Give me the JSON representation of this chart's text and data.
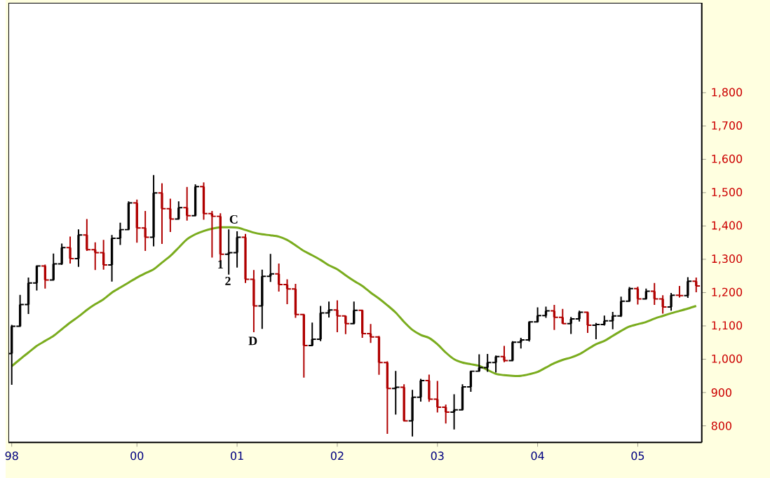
{
  "chart_data": {
    "type": "candlestick",
    "categories": [
      "98",
      null,
      null,
      null,
      null,
      null,
      null,
      null,
      null,
      null,
      null,
      null,
      null,
      null,
      null,
      "00",
      null,
      null,
      null,
      null,
      null,
      null,
      null,
      null,
      null,
      null,
      null,
      "01",
      null,
      null,
      null,
      null,
      null,
      null,
      null,
      null,
      null,
      null,
      null,
      "02",
      null,
      null,
      null,
      null,
      null,
      null,
      null,
      null,
      null,
      null,
      null,
      "03",
      null,
      null,
      null,
      null,
      null,
      null,
      null,
      null,
      null,
      null,
      null,
      "04",
      null,
      null,
      null,
      null,
      null,
      null,
      null,
      null,
      null,
      null,
      null,
      "05",
      null,
      null,
      null,
      null,
      null,
      null,
      null
    ],
    "ohlc": [
      [
        1017,
        1103,
        923,
        1099
      ],
      [
        1099,
        1193,
        1097,
        1164
      ],
      [
        1164,
        1245,
        1136,
        1229
      ],
      [
        1229,
        1280,
        1206,
        1280
      ],
      [
        1280,
        1284,
        1212,
        1238
      ],
      [
        1238,
        1317,
        1238,
        1286
      ],
      [
        1286,
        1347,
        1283,
        1335
      ],
      [
        1335,
        1368,
        1287,
        1302
      ],
      [
        1302,
        1390,
        1277,
        1373
      ],
      [
        1373,
        1421,
        1325,
        1329
      ],
      [
        1329,
        1351,
        1268,
        1320
      ],
      [
        1320,
        1358,
        1269,
        1283
      ],
      [
        1283,
        1373,
        1233,
        1363
      ],
      [
        1363,
        1410,
        1343,
        1389
      ],
      [
        1389,
        1474,
        1387,
        1469
      ],
      [
        1469,
        1479,
        1350,
        1394
      ],
      [
        1394,
        1445,
        1325,
        1366
      ],
      [
        1366,
        1553,
        1339,
        1499
      ],
      [
        1499,
        1528,
        1346,
        1452
      ],
      [
        1452,
        1482,
        1382,
        1421
      ],
      [
        1421,
        1474,
        1420,
        1455
      ],
      [
        1455,
        1517,
        1416,
        1431
      ],
      [
        1431,
        1525,
        1431,
        1518
      ],
      [
        1518,
        1531,
        1419,
        1437
      ],
      [
        1437,
        1445,
        1305,
        1429
      ],
      [
        1429,
        1438,
        1295,
        1315
      ],
      [
        1315,
        1390,
        1254,
        1320
      ],
      [
        1320,
        1384,
        1275,
        1366
      ],
      [
        1366,
        1376,
        1229,
        1240
      ],
      [
        1240,
        1268,
        1081,
        1160
      ],
      [
        1160,
        1269,
        1091,
        1249
      ],
      [
        1249,
        1316,
        1232,
        1256
      ],
      [
        1256,
        1287,
        1203,
        1224
      ],
      [
        1224,
        1240,
        1165,
        1211
      ],
      [
        1211,
        1226,
        1124,
        1134
      ],
      [
        1134,
        1134,
        945,
        1041
      ],
      [
        1041,
        1110,
        1040,
        1060
      ],
      [
        1060,
        1160,
        1054,
        1139
      ],
      [
        1139,
        1173,
        1125,
        1148
      ],
      [
        1148,
        1177,
        1081,
        1130
      ],
      [
        1130,
        1131,
        1075,
        1107
      ],
      [
        1107,
        1173,
        1107,
        1147
      ],
      [
        1147,
        1147,
        1064,
        1077
      ],
      [
        1077,
        1106,
        1049,
        1067
      ],
      [
        1067,
        1070,
        953,
        990
      ],
      [
        990,
        994,
        776,
        912
      ],
      [
        912,
        965,
        834,
        916
      ],
      [
        916,
        925,
        815,
        815
      ],
      [
        815,
        908,
        768,
        886
      ],
      [
        886,
        941,
        873,
        936
      ],
      [
        936,
        954,
        872,
        880
      ],
      [
        880,
        935,
        840,
        856
      ],
      [
        856,
        864,
        807,
        841
      ],
      [
        841,
        895,
        789,
        848
      ],
      [
        848,
        925,
        848,
        917
      ],
      [
        917,
        966,
        902,
        964
      ],
      [
        964,
        1015,
        963,
        975
      ],
      [
        975,
        1016,
        962,
        990
      ],
      [
        990,
        1011,
        960,
        1008
      ],
      [
        1008,
        1040,
        991,
        996
      ],
      [
        996,
        1054,
        996,
        1051
      ],
      [
        1051,
        1064,
        1032,
        1058
      ],
      [
        1058,
        1112,
        1053,
        1112
      ],
      [
        1112,
        1156,
        1112,
        1131
      ],
      [
        1131,
        1158,
        1124,
        1145
      ],
      [
        1145,
        1163,
        1088,
        1126
      ],
      [
        1126,
        1151,
        1106,
        1107
      ],
      [
        1107,
        1127,
        1076,
        1121
      ],
      [
        1121,
        1146,
        1113,
        1141
      ],
      [
        1141,
        1141,
        1079,
        1102
      ],
      [
        1102,
        1109,
        1060,
        1104
      ],
      [
        1104,
        1131,
        1101,
        1115
      ],
      [
        1115,
        1142,
        1090,
        1130
      ],
      [
        1130,
        1188,
        1127,
        1174
      ],
      [
        1174,
        1217,
        1174,
        1212
      ],
      [
        1212,
        1218,
        1164,
        1181
      ],
      [
        1181,
        1212,
        1180,
        1204
      ],
      [
        1204,
        1229,
        1163,
        1181
      ],
      [
        1181,
        1192,
        1137,
        1157
      ],
      [
        1157,
        1199,
        1146,
        1192
      ],
      [
        1192,
        1220,
        1185,
        1191
      ],
      [
        1191,
        1246,
        1184,
        1234
      ],
      [
        1234,
        1245,
        1201,
        1220
      ]
    ],
    "colors": [
      "#000000",
      "#000000",
      "#000000",
      "#000000",
      "#b00000",
      "#000000",
      "#000000",
      "#b00000",
      "#000000",
      "#b00000",
      "#b00000",
      "#b00000",
      "#000000",
      "#000000",
      "#000000",
      "#b00000",
      "#b00000",
      "#000000",
      "#b00000",
      "#b00000",
      "#000000",
      "#b00000",
      "#000000",
      "#b00000",
      "#b00000",
      "#b00000",
      "#000000",
      "#000000",
      "#b00000",
      "#b00000",
      "#000000",
      "#000000",
      "#b00000",
      "#b00000",
      "#b00000",
      "#b00000",
      "#000000",
      "#000000",
      "#000000",
      "#b00000",
      "#b00000",
      "#000000",
      "#b00000",
      "#b00000",
      "#b00000",
      "#b00000",
      "#000000",
      "#b00000",
      "#000000",
      "#000000",
      "#b00000",
      "#b00000",
      "#b00000",
      "#000000",
      "#000000",
      "#000000",
      "#000000",
      "#000000",
      "#000000",
      "#b00000",
      "#000000",
      "#000000",
      "#000000",
      "#000000",
      "#000000",
      "#b00000",
      "#b00000",
      "#000000",
      "#000000",
      "#b00000",
      "#000000",
      "#000000",
      "#000000",
      "#000000",
      "#000000",
      "#b00000",
      "#000000",
      "#b00000",
      "#b00000",
      "#000000",
      "#b00000",
      "#000000",
      "#b00000"
    ],
    "series": [
      {
        "type": "line",
        "color": "#7aac1e",
        "values": [
          979,
          1000,
          1020,
          1040,
          1055,
          1070,
          1090,
          1110,
          1128,
          1148,
          1165,
          1180,
          1200,
          1215,
          1230,
          1245,
          1258,
          1270,
          1290,
          1310,
          1335,
          1360,
          1375,
          1385,
          1392,
          1396,
          1396,
          1395,
          1388,
          1380,
          1375,
          1372,
          1368,
          1358,
          1342,
          1325,
          1312,
          1298,
          1282,
          1270,
          1252,
          1235,
          1220,
          1200,
          1182,
          1162,
          1140,
          1112,
          1088,
          1073,
          1064,
          1045,
          1020,
          1000,
          990,
          985,
          980,
          968,
          956,
          952,
          950,
          950,
          955,
          962,
          975,
          988,
          998,
          1005,
          1015,
          1030,
          1045,
          1055,
          1070,
          1085,
          1098,
          1105,
          1112,
          1122,
          1130,
          1138,
          1145,
          1152,
          1160
        ]
      }
    ],
    "ylim": [
      750,
      2070
    ],
    "yticks": [
      {
        "value": 800,
        "label": "800"
      },
      {
        "value": 900,
        "label": "900"
      },
      {
        "value": 1000,
        "label": "1,000"
      },
      {
        "value": 1100,
        "label": "1,100"
      },
      {
        "value": 1200,
        "label": "1,200"
      },
      {
        "value": 1300,
        "label": "1,300"
      },
      {
        "value": 1400,
        "label": "1,400"
      },
      {
        "value": 1500,
        "label": "1,500"
      },
      {
        "value": 1600,
        "label": "1,600"
      },
      {
        "value": 1700,
        "label": "1,700"
      },
      {
        "value": 1800,
        "label": "1,800"
      }
    ],
    "annotations": [
      "C",
      "1",
      "2",
      "D"
    ]
  }
}
